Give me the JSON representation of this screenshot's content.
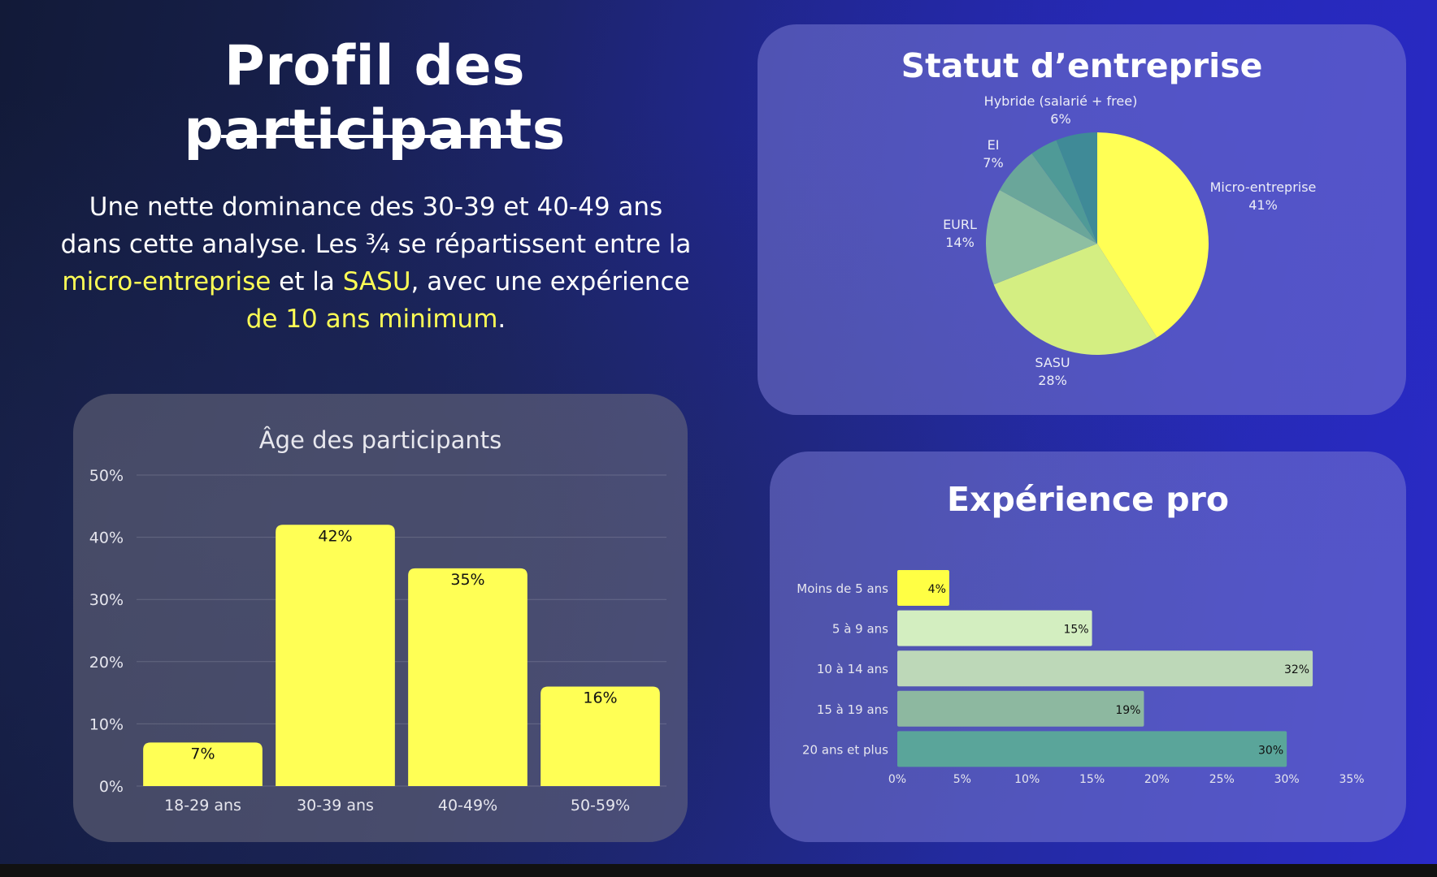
{
  "header": {
    "title": "Profil des participants",
    "intro": {
      "part1": "Une nette dominance des 30-39 et 40-49 ans dans cette analyse. Les ¾ se répartissent entre la ",
      "hl1": "micro-entreprise",
      "part2": " et la ",
      "hl2": "SASU",
      "part3": ", avec une expérience ",
      "hl3": "de 10 ans minimum",
      "part4": "."
    }
  },
  "colors": {
    "bar_yellow": "#ffff55",
    "highlight": "#ffff55",
    "pie": [
      "#ffff55",
      "#d4ee82",
      "#8ebfa2",
      "#6aa69a",
      "#4f9a97",
      "#3f8a97"
    ],
    "exp": [
      "#ffff44",
      "#d3eec0",
      "#bdd8b8",
      "#8db8a0",
      "#5aa59a"
    ]
  },
  "chart_data": [
    {
      "type": "bar",
      "title": "Âge des participants",
      "categories": [
        "18-29 ans",
        "30-39 ans",
        "40-49%",
        "50-59%"
      ],
      "values": [
        7,
        42,
        35,
        16
      ],
      "data_labels": [
        "7%",
        "42%",
        "35%",
        "16%"
      ],
      "ylim": [
        0,
        50
      ],
      "yticks": [
        0,
        10,
        20,
        30,
        40,
        50
      ],
      "ytick_labels": [
        "0%",
        "10%",
        "20%",
        "30%",
        "40%",
        "50%"
      ],
      "grid": true
    },
    {
      "type": "pie",
      "title": "Statut d’entreprise",
      "slices": [
        {
          "label": "Micro-entreprise",
          "value": 41,
          "pct": "41%"
        },
        {
          "label": "SASU",
          "value": 28,
          "pct": "28%"
        },
        {
          "label": "EURL",
          "value": 14,
          "pct": "14%"
        },
        {
          "label": "EI",
          "value": 7,
          "pct": "7%"
        },
        {
          "label": "",
          "value": 4,
          "pct": ""
        },
        {
          "label": "Hybride (salarié + free)",
          "value": 6,
          "pct": "6%"
        }
      ]
    },
    {
      "type": "bar",
      "orientation": "horizontal",
      "title": "Expérience pro",
      "categories": [
        "Moins de 5 ans",
        "5 à 9 ans",
        "10 à 14 ans",
        "15 à 19 ans",
        "20 ans et plus"
      ],
      "values": [
        4,
        15,
        32,
        19,
        30
      ],
      "data_labels": [
        "4%",
        "15%",
        "32%",
        "19%",
        "30%"
      ],
      "xlim": [
        0,
        35
      ],
      "xticks": [
        0,
        5,
        10,
        15,
        20,
        25,
        30,
        35
      ],
      "xtick_labels": [
        "0%",
        "5%",
        "10%",
        "15%",
        "20%",
        "25%",
        "30%",
        "35%"
      ]
    }
  ]
}
